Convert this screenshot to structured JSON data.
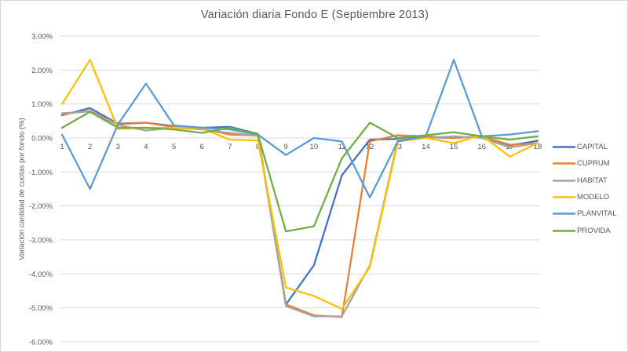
{
  "chart": {
    "title": "Variación diaria Fondo E (Septiembre 2013)",
    "y_axis_title": "Variación cantidad de cuotas por fondo (%)",
    "background_color": "#FFFFFF",
    "gridline_color": "#D9D9D9",
    "text_color": "#595959"
  },
  "chart_data": {
    "type": "line",
    "title": "Variación diaria Fondo E (Septiembre 2013)",
    "xlabel": "",
    "ylabel": "Variación cantidad de cuotas por fondo (%)",
    "x": [
      1,
      2,
      3,
      4,
      5,
      6,
      7,
      8,
      9,
      10,
      11,
      12,
      13,
      14,
      15,
      16,
      17,
      18
    ],
    "ylim": [
      -6,
      3
    ],
    "grid": true,
    "legend_position": "right",
    "yticks": [
      {
        "value": 3,
        "label": "3.00%"
      },
      {
        "value": 2,
        "label": "2.00%"
      },
      {
        "value": 1,
        "label": "1.00%"
      },
      {
        "value": 0,
        "label": "0.00%"
      },
      {
        "value": -1,
        "label": "-1.00%"
      },
      {
        "value": -2,
        "label": "-2.00%"
      },
      {
        "value": -3,
        "label": "-3.00%"
      },
      {
        "value": -4,
        "label": "-4.00%"
      },
      {
        "value": -5,
        "label": "-5.00%"
      },
      {
        "value": -6,
        "label": "-6.00%"
      }
    ],
    "series": [
      {
        "name": "CAPITAL",
        "color": "#4472C4",
        "values": [
          0.67,
          0.88,
          0.42,
          0.45,
          0.35,
          0.3,
          0.33,
          0.12,
          -4.9,
          -3.75,
          -1.1,
          -0.05,
          -0.03,
          0.02,
          0.0,
          0.05,
          -0.22,
          -0.08
        ]
      },
      {
        "name": "CUPRUM",
        "color": "#ED7D31",
        "values": [
          0.7,
          0.8,
          0.4,
          0.45,
          0.32,
          0.27,
          0.1,
          0.07,
          -4.9,
          -5.22,
          -5.27,
          -0.1,
          0.08,
          0.05,
          0.0,
          0.05,
          -0.2,
          -0.15
        ]
      },
      {
        "name": "HABITAT",
        "color": "#A5A5A5",
        "values": [
          0.73,
          0.78,
          0.38,
          0.22,
          0.3,
          0.25,
          0.15,
          0.07,
          -4.95,
          -5.25,
          -5.25,
          -3.75,
          -0.05,
          0.0,
          0.05,
          0.0,
          -0.28,
          -0.15
        ]
      },
      {
        "name": "MODELO",
        "color": "#FFC000",
        "values": [
          1.0,
          2.3,
          0.27,
          0.3,
          0.3,
          0.28,
          -0.05,
          -0.07,
          -4.4,
          -4.65,
          -5.03,
          -3.8,
          -0.1,
          0.0,
          -0.15,
          0.08,
          -0.55,
          -0.15
        ]
      },
      {
        "name": "PLANVITAL",
        "color": "#5B9BD5",
        "values": [
          0.1,
          -1.5,
          0.4,
          1.6,
          0.37,
          0.3,
          0.25,
          0.1,
          -0.5,
          0.0,
          -0.1,
          -1.75,
          -0.1,
          0.05,
          2.3,
          0.05,
          0.1,
          0.2
        ]
      },
      {
        "name": "PROVIDA",
        "color": "#70AD47",
        "values": [
          0.3,
          0.77,
          0.3,
          0.3,
          0.25,
          0.15,
          0.3,
          0.1,
          -2.75,
          -2.6,
          -0.6,
          0.45,
          0.0,
          0.08,
          0.17,
          0.05,
          -0.05,
          0.05
        ]
      }
    ]
  }
}
